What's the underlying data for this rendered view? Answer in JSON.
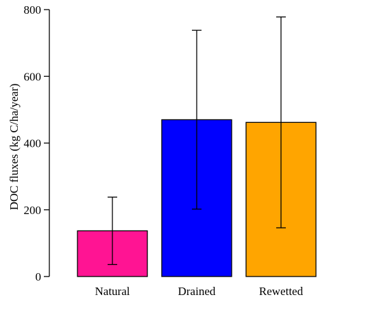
{
  "chart_data": {
    "type": "bar",
    "title": "",
    "xlabel": "",
    "ylabel": "DOC fluxes (kg C/ha/year)",
    "ylim": [
      0,
      800
    ],
    "yticks": [
      0,
      200,
      400,
      600,
      800
    ],
    "grid": false,
    "categories": [
      "Natural",
      "Drained",
      "Rewetted"
    ],
    "values": [
      137,
      470,
      462
    ],
    "error_low": [
      36,
      202,
      146
    ],
    "error_high": [
      238,
      738,
      778
    ],
    "colors": [
      "#FF1493",
      "#0000FF",
      "#FFA500"
    ]
  }
}
